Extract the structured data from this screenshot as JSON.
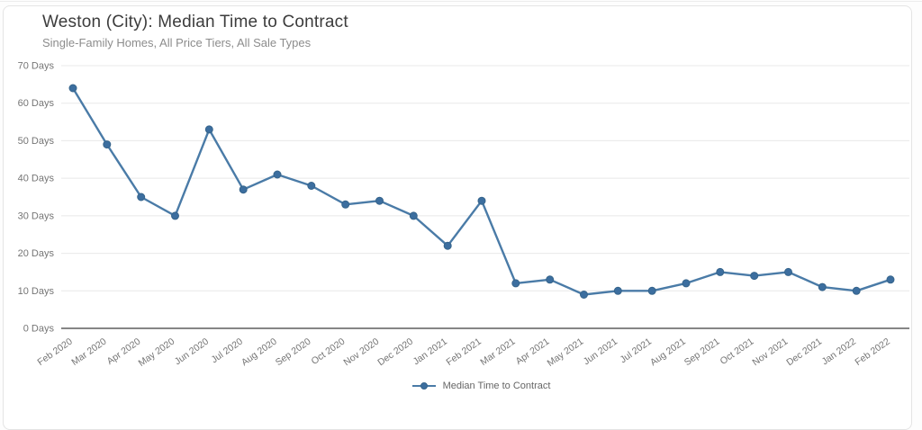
{
  "header": {
    "title": "Weston (City): Median Time to Contract",
    "subtitle": "Single-Family Homes, All Price Tiers, All Sale Types"
  },
  "legend": {
    "label": "Median Time to Contract"
  },
  "colors": {
    "line": "#4a7ba7",
    "marker_fill": "#3c6e9f",
    "marker_edge": "#36648b",
    "grid": "#e8e8e8",
    "zero_line": "#5f5f5f",
    "axis_text": "#757575",
    "title_text": "#3c3c3c",
    "subtitle_text": "#8c8c8c"
  },
  "chart_data": {
    "type": "line",
    "title": "Weston (City): Median Time to Contract",
    "subtitle": "Single-Family Homes, All Price Tiers, All Sale Types",
    "categories": [
      "Feb 2020",
      "Mar 2020",
      "Apr 2020",
      "May 2020",
      "Jun 2020",
      "Jul 2020",
      "Aug 2020",
      "Sep 2020",
      "Oct 2020",
      "Nov 2020",
      "Dec 2020",
      "Jan 2021",
      "Feb 2021",
      "Mar 2021",
      "Apr 2021",
      "May 2021",
      "Jun 2021",
      "Jul 2021",
      "Aug 2021",
      "Sep 2021",
      "Oct 2021",
      "Nov 2021",
      "Dec 2021",
      "Jan 2022",
      "Feb 2022"
    ],
    "series": [
      {
        "name": "Median Time to Contract",
        "values": [
          64,
          49,
          35,
          30,
          53,
          37,
          41,
          38,
          33,
          34,
          30,
          22,
          34,
          12,
          13,
          9,
          10,
          10,
          12,
          15,
          14,
          15,
          11,
          10,
          13
        ]
      }
    ],
    "y_ticks": [
      {
        "value": 0,
        "label": "0 Days"
      },
      {
        "value": 10,
        "label": "10 Days"
      },
      {
        "value": 20,
        "label": "20 Days"
      },
      {
        "value": 30,
        "label": "30 Days"
      },
      {
        "value": 40,
        "label": "40 Days"
      },
      {
        "value": 50,
        "label": "50 Days"
      },
      {
        "value": 60,
        "label": "60 Days"
      },
      {
        "value": 70,
        "label": "70 Days"
      }
    ],
    "ylim": [
      0,
      70
    ],
    "xlabel": "",
    "ylabel": "",
    "grid": "horizontal",
    "x_label_rotation": -35,
    "legend_position": "bottom"
  }
}
